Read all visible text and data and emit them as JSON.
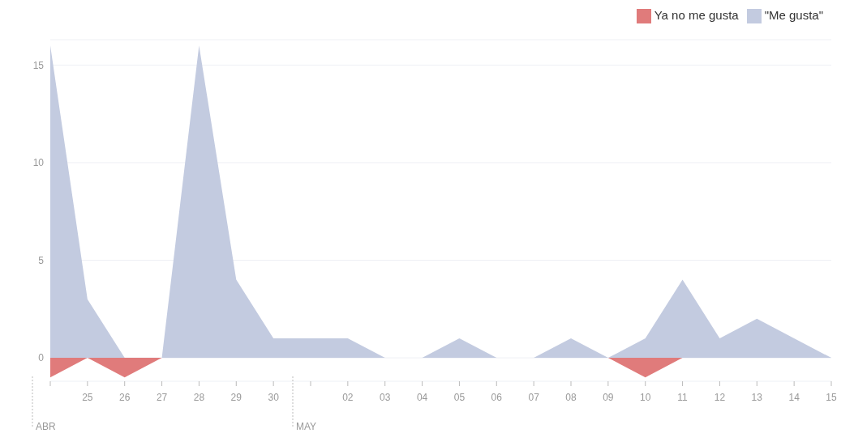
{
  "chart_data": {
    "type": "area",
    "categories": [
      null,
      "25",
      "26",
      "27",
      "28",
      "29",
      "30",
      null,
      "02",
      "03",
      "04",
      "05",
      "06",
      "07",
      "08",
      "09",
      "10",
      "11",
      "12",
      "13",
      "14",
      "15"
    ],
    "series": [
      {
        "name": "Ya no me gusta",
        "color": "#e07b7b",
        "values": [
          -1,
          0,
          -1,
          0,
          0,
          0,
          0,
          0,
          0,
          0,
          0,
          0,
          0,
          0,
          0,
          0,
          -1,
          0,
          0,
          0,
          0,
          0
        ]
      },
      {
        "name": "\"Me gusta\"",
        "color": "#c3cbe0",
        "values": [
          16,
          3,
          0,
          0,
          16,
          4,
          1,
          1,
          1,
          0,
          0,
          1,
          0,
          0,
          1,
          0,
          1,
          4,
          1,
          2,
          1,
          0
        ]
      }
    ],
    "annotations": [
      "ABR",
      "MAY"
    ],
    "ylim": [
      -1.2,
      16.3
    ],
    "yticks": [
      0,
      5,
      10,
      15
    ],
    "grid": "y",
    "legend": "top right"
  }
}
